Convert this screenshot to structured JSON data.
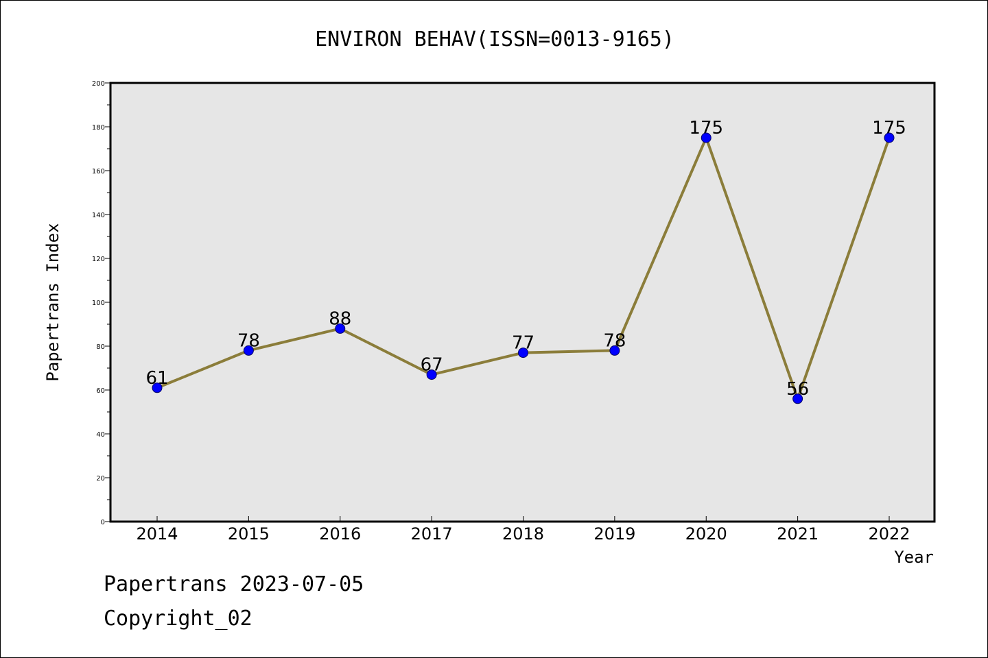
{
  "chart_data": {
    "type": "line",
    "title": "ENVIRON BEHAV(ISSN=0013-9165)",
    "xlabel": "Year",
    "ylabel": "Papertrans Index",
    "categories": [
      "2014",
      "2015",
      "2016",
      "2017",
      "2018",
      "2019",
      "2020",
      "2021",
      "2022"
    ],
    "series": [
      {
        "values": [
          61,
          78,
          88,
          67,
          77,
          78,
          175,
          56,
          175
        ]
      }
    ],
    "data_labels": [
      "61",
      "78",
      "88",
      "67",
      "77",
      "78",
      "175",
      "56",
      "175"
    ],
    "ylim": [
      0,
      200
    ],
    "yticks": [
      "0",
      "20",
      "40",
      "60",
      "80",
      "100",
      "120",
      "140",
      "160",
      "180",
      "200"
    ],
    "grid": false,
    "colors": {
      "line": "#8b7d3a",
      "marker": "#0000ff",
      "plot_bg": "#e6e6e6"
    }
  },
  "footer": {
    "line1": "Papertrans 2023-07-05",
    "line2": "Copyright_02"
  }
}
